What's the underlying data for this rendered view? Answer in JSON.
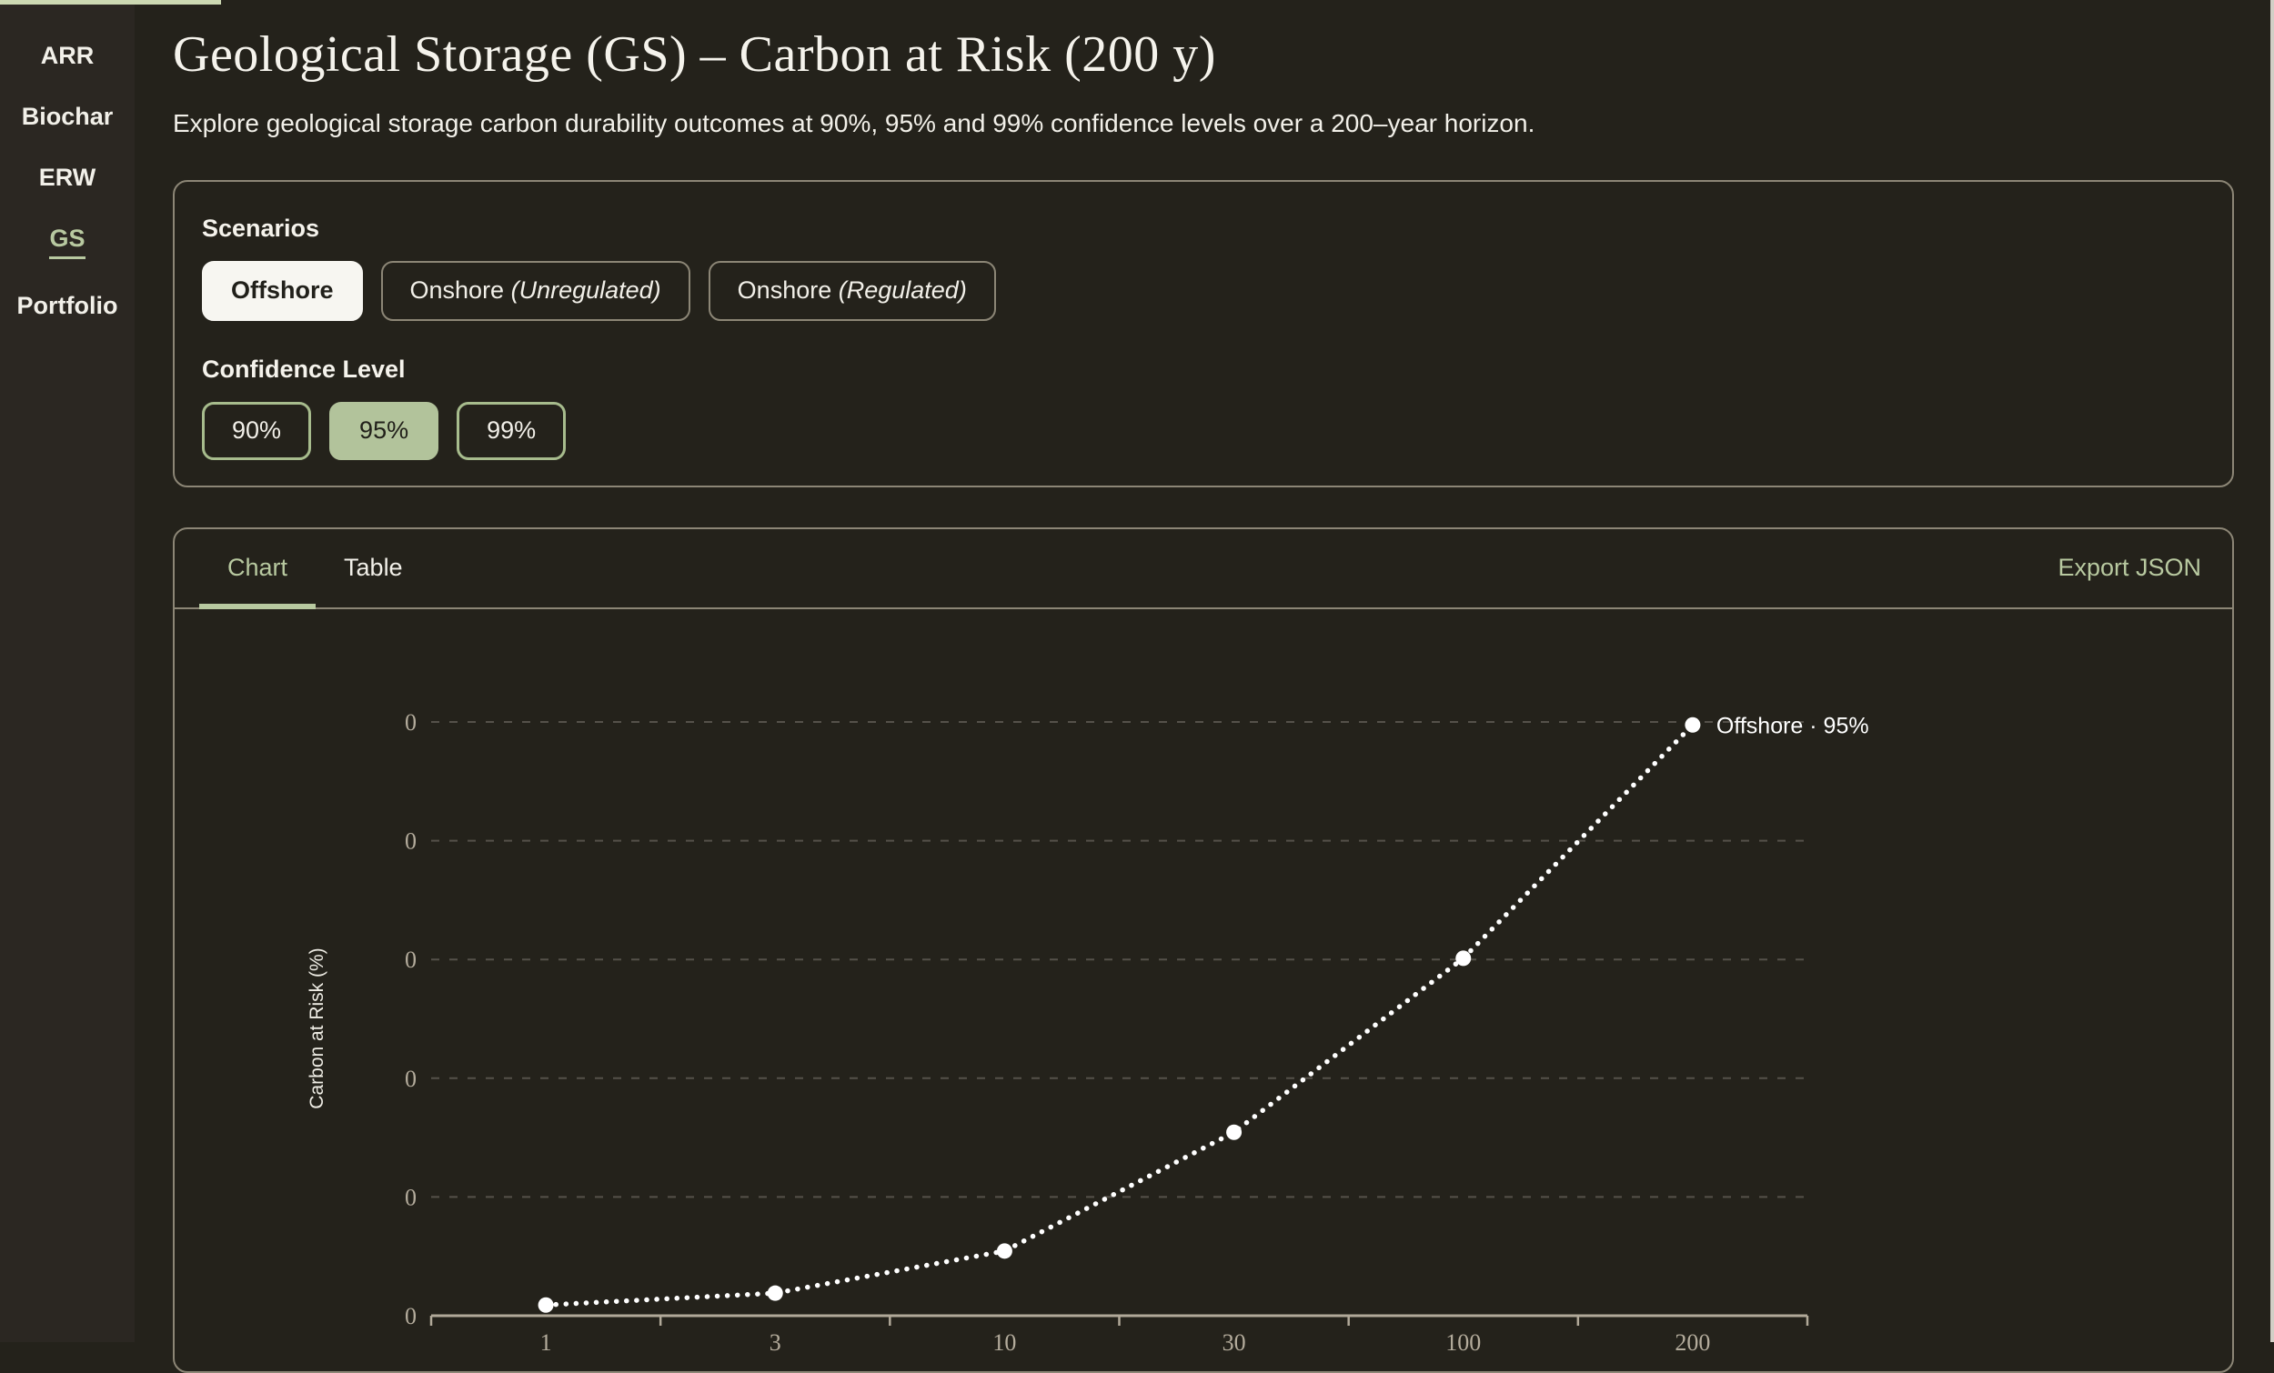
{
  "sidebar": {
    "items": [
      {
        "label": "ARR",
        "active": false
      },
      {
        "label": "Biochar",
        "active": false
      },
      {
        "label": "ERW",
        "active": false
      },
      {
        "label": "GS",
        "active": true
      },
      {
        "label": "Portfolio",
        "active": false
      }
    ]
  },
  "header": {
    "title": "Geological Storage (GS) – Carbon at Risk (200 y)",
    "subtitle": "Explore geological storage carbon durability outcomes at 90%, 95% and 99% confidence levels over a 200–year horizon."
  },
  "controls": {
    "scenarios_label": "Scenarios",
    "scenario_options": [
      {
        "label": "Offshore",
        "suffix": "",
        "selected": true
      },
      {
        "label": "Onshore ",
        "suffix": "(Unregulated)",
        "selected": false
      },
      {
        "label": "Onshore ",
        "suffix": "(Regulated)",
        "selected": false
      }
    ],
    "confidence_label": "Confidence Level",
    "confidence_options": [
      {
        "label": "90%",
        "selected": false
      },
      {
        "label": "95%",
        "selected": true
      },
      {
        "label": "99%",
        "selected": false
      }
    ]
  },
  "panel": {
    "tabs": [
      {
        "label": "Chart",
        "active": true
      },
      {
        "label": "Table",
        "active": false
      }
    ],
    "export_label": "Export JSON"
  },
  "chart_data": {
    "type": "line",
    "line_style": "dotted",
    "title": "",
    "xlabel": "",
    "ylabel": "Carbon at Risk (%)",
    "x_scale": "log-band",
    "grid": "dashed-horizontal",
    "legend_position": "end-of-line-label",
    "x_values": [
      1,
      3,
      10,
      30,
      100,
      200
    ],
    "x_tick_labels": [
      "1",
      "3",
      "10",
      "30",
      "100",
      "200"
    ],
    "y_tick_labels": [
      "0",
      "0",
      "0",
      "0",
      "0",
      "0"
    ],
    "series": [
      {
        "name": "Offshore · 95%",
        "x": [
          1,
          3,
          10,
          30,
          100,
          200
        ],
        "values_relative_to_top_gridline": [
          0.018,
          0.038,
          0.109,
          0.309,
          0.602,
          0.995
        ]
      }
    ],
    "point_label": "Offshore · 95%",
    "colors": {
      "line": "#ffffff",
      "marker": "#ffffff",
      "axis": "#b1a999",
      "gridline": "#55514a",
      "tick_label": "#b4ac9c",
      "point_label_text": "#ffffff"
    }
  },
  "theme": {
    "page_bg": "#24221b",
    "sidebar_bg": "#2b2722",
    "accent_green": "#b8c9a0",
    "selected_conf_bg": "#b2c39b",
    "selected_scenario_bg": "#f7f6f1",
    "card_border": "#8c8676",
    "top_strip": "#ccd8b2",
    "dark_text": "#21201a"
  }
}
